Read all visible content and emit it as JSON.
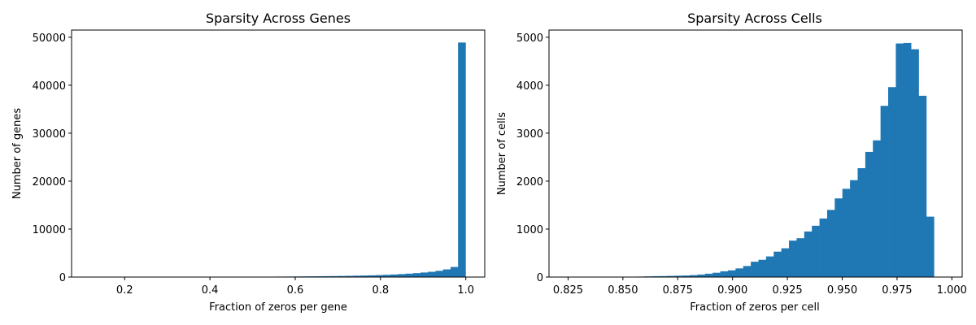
{
  "chart_data": [
    {
      "type": "bar",
      "title": "Sparsity Across Genes",
      "xlabel": "Fraction of zeros per gene",
      "ylabel": "Number of genes",
      "xlim": [
        0.0755,
        1.0445
      ],
      "ylim": [
        0,
        51500
      ],
      "xticks": [
        {
          "v": 0.2,
          "label": "0.2"
        },
        {
          "v": 0.4,
          "label": "0.4"
        },
        {
          "v": 0.6,
          "label": "0.6"
        },
        {
          "v": 0.8,
          "label": "0.8"
        },
        {
          "v": 1.0,
          "label": "1.0"
        }
      ],
      "yticks": [
        {
          "v": 0,
          "label": "0"
        },
        {
          "v": 10000,
          "label": "10000"
        },
        {
          "v": 20000,
          "label": "20000"
        },
        {
          "v": 30000,
          "label": "30000"
        },
        {
          "v": 40000,
          "label": "40000"
        },
        {
          "v": 50000,
          "label": "50000"
        }
      ],
      "bin_start": 0.1195,
      "bin_width": 0.0176,
      "values": [
        5,
        3,
        2,
        3,
        4,
        5,
        6,
        8,
        10,
        12,
        14,
        16,
        18,
        20,
        22,
        26,
        30,
        35,
        40,
        48,
        55,
        62,
        70,
        80,
        90,
        100,
        110,
        125,
        140,
        155,
        170,
        185,
        205,
        230,
        255,
        285,
        320,
        360,
        410,
        470,
        540,
        620,
        710,
        820,
        950,
        1100,
        1300,
        1600,
        2100,
        48900
      ]
    },
    {
      "type": "bar",
      "title": "Sparsity Across Cells",
      "xlabel": "Fraction of zeros per cell",
      "ylabel": "Number of cells",
      "xlim": [
        0.8163,
        1.0047
      ],
      "ylim": [
        0,
        5150
      ],
      "xticks": [
        {
          "v": 0.825,
          "label": "0.825"
        },
        {
          "v": 0.85,
          "label": "0.850"
        },
        {
          "v": 0.875,
          "label": "0.875"
        },
        {
          "v": 0.9,
          "label": "0.900"
        },
        {
          "v": 0.925,
          "label": "0.925"
        },
        {
          "v": 0.95,
          "label": "0.950"
        },
        {
          "v": 0.975,
          "label": "0.975"
        },
        {
          "v": 1.0,
          "label": "1.000"
        }
      ],
      "yticks": [
        {
          "v": 0,
          "label": "0"
        },
        {
          "v": 1000,
          "label": "1000"
        },
        {
          "v": 2000,
          "label": "2000"
        },
        {
          "v": 3000,
          "label": "3000"
        },
        {
          "v": 4000,
          "label": "4000"
        },
        {
          "v": 5000,
          "label": "5000"
        }
      ],
      "bin_start": 0.8248,
      "bin_width": 0.00348,
      "values": [
        2,
        2,
        3,
        5,
        1,
        8,
        2,
        6,
        8,
        10,
        14,
        18,
        20,
        24,
        28,
        32,
        40,
        52,
        70,
        90,
        120,
        140,
        180,
        230,
        320,
        360,
        430,
        530,
        600,
        760,
        810,
        950,
        1070,
        1220,
        1400,
        1640,
        1840,
        2020,
        2270,
        2610,
        2850,
        3570,
        3960,
        4870,
        4880,
        4750,
        3780,
        1260
      ]
    }
  ]
}
